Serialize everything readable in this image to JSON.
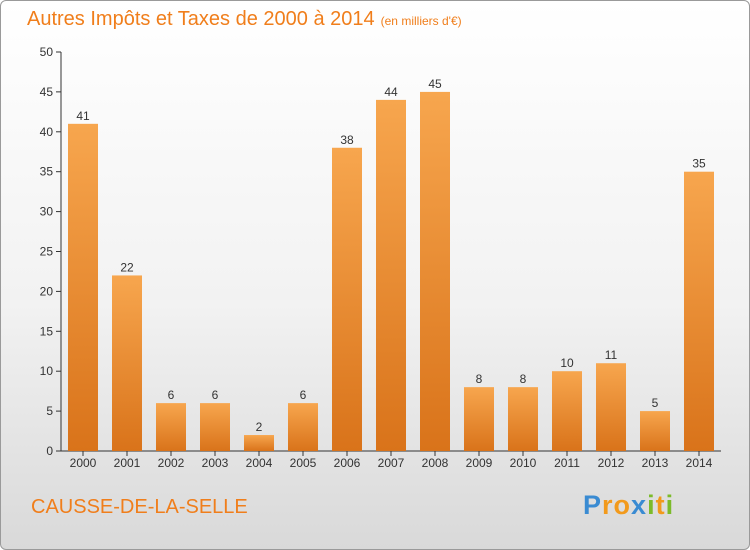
{
  "header": {
    "title": "Autres Impôts et Taxes de 2000 à 2014",
    "unit": "(en milliers d'€)"
  },
  "footer": {
    "city": "CAUSSE-DE-LA-SELLE",
    "logo": [
      "P",
      "r",
      "o",
      "x",
      "i",
      "t",
      "i"
    ],
    "logo_colors": [
      "#3a8bd2",
      "#f29a1c",
      "#f29a1c",
      "#3a8bd2",
      "#7cbb2a",
      "#f29a1c",
      "#7cbb2a"
    ]
  },
  "colors": {
    "bar_light": "#f7a64e",
    "bar_dark": "#d9731a",
    "title": "#f07e1b"
  },
  "chart_data": {
    "type": "bar",
    "title": "Autres Impôts et Taxes de 2000 à 2014",
    "subtitle": "(en milliers d'€)",
    "categories": [
      "2000",
      "2001",
      "2002",
      "2003",
      "2004",
      "2005",
      "2006",
      "2007",
      "2008",
      "2009",
      "2010",
      "2011",
      "2012",
      "2013",
      "2014"
    ],
    "values": [
      41,
      22,
      6,
      6,
      2,
      6,
      38,
      44,
      45,
      8,
      8,
      10,
      11,
      5,
      35
    ],
    "ylim": [
      0,
      50
    ],
    "yticks": [
      0,
      5,
      10,
      15,
      20,
      25,
      30,
      35,
      40,
      45,
      50
    ],
    "grid": false,
    "xlabel": "",
    "ylabel": ""
  }
}
